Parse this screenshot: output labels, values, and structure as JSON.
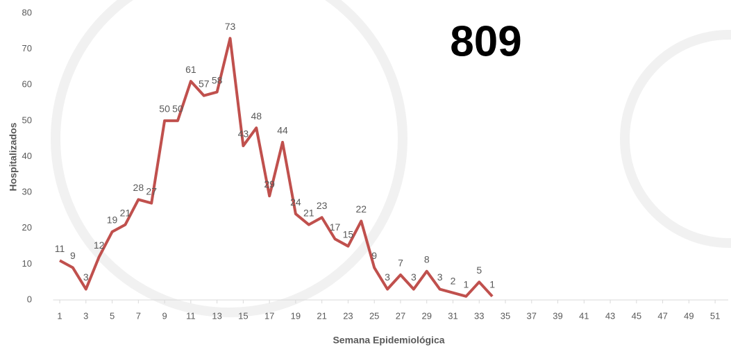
{
  "chart_data": {
    "type": "line",
    "annotation": "809",
    "ylabel": "Hospitalizados",
    "xlabel": "Semana Epidemiológica",
    "x": [
      1,
      2,
      3,
      4,
      5,
      6,
      7,
      8,
      9,
      10,
      11,
      12,
      13,
      14,
      15,
      16,
      17,
      18,
      19,
      20,
      21,
      22,
      23,
      24,
      25,
      26,
      27,
      28,
      29,
      30,
      31,
      32,
      33,
      34
    ],
    "series": [
      {
        "name": "Hospitalizados",
        "color": "#c0504d",
        "values": [
          11,
          9,
          3,
          12,
          19,
          21,
          28,
          27,
          50,
          50,
          61,
          57,
          58,
          73,
          43,
          48,
          29,
          44,
          24,
          21,
          23,
          17,
          15,
          22,
          9,
          3,
          7,
          3,
          8,
          3,
          2,
          1,
          5,
          1
        ]
      }
    ],
    "xlim": [
      0.5,
      52
    ],
    "xticks": [
      1,
      3,
      5,
      7,
      9,
      11,
      13,
      15,
      17,
      19,
      21,
      23,
      25,
      27,
      29,
      31,
      33,
      35,
      37,
      39,
      41,
      43,
      45,
      47,
      49,
      51
    ],
    "ylim": [
      0,
      80
    ],
    "yticks": [
      0,
      10,
      20,
      30,
      40,
      50,
      60,
      70,
      80
    ],
    "grid": false
  }
}
